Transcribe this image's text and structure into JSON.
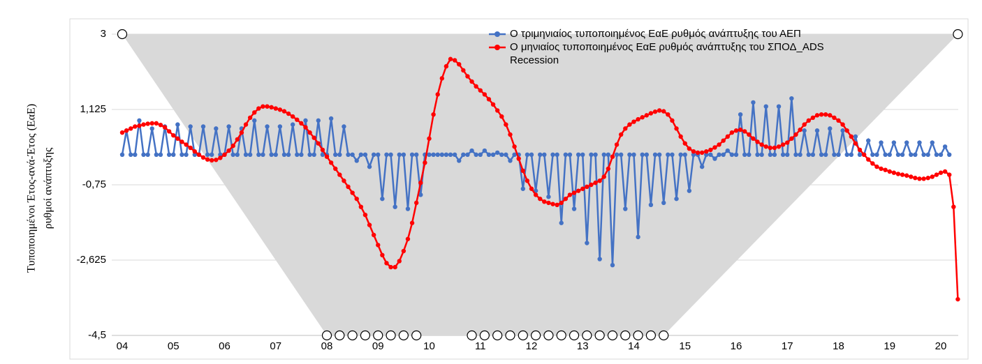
{
  "chart_data": {
    "type": "line",
    "y_label_lines": [
      "Τυποποιημένοι Έτος-ανά-Έτος (ΕαΕ)",
      "ρυθμοί ανάπτυξης"
    ],
    "categories": [
      "04",
      null,
      null,
      null,
      null,
      null,
      null,
      null,
      null,
      null,
      null,
      null,
      "05",
      null,
      null,
      null,
      null,
      null,
      null,
      null,
      null,
      null,
      null,
      null,
      "06",
      null,
      null,
      null,
      null,
      null,
      null,
      null,
      null,
      null,
      null,
      null,
      "07",
      null,
      null,
      null,
      null,
      null,
      null,
      null,
      null,
      null,
      null,
      null,
      "08",
      null,
      null,
      null,
      null,
      null,
      null,
      null,
      null,
      null,
      null,
      null,
      "09",
      null,
      null,
      null,
      null,
      null,
      null,
      null,
      null,
      null,
      null,
      null,
      "10",
      null,
      null,
      null,
      null,
      null,
      null,
      null,
      null,
      null,
      null,
      null,
      "11",
      null,
      null,
      null,
      null,
      null,
      null,
      null,
      null,
      null,
      null,
      null,
      "12",
      null,
      null,
      null,
      null,
      null,
      null,
      null,
      null,
      null,
      null,
      null,
      "13",
      null,
      null,
      null,
      null,
      null,
      null,
      null,
      null,
      null,
      null,
      null,
      "14",
      null,
      null,
      null,
      null,
      null,
      null,
      null,
      null,
      null,
      null,
      null,
      "15",
      null,
      null,
      null,
      null,
      null,
      null,
      null,
      null,
      null,
      null,
      null,
      "16",
      null,
      null,
      null,
      null,
      null,
      null,
      null,
      null,
      null,
      null,
      null,
      "17",
      null,
      null,
      null,
      null,
      null,
      null,
      null,
      null,
      null,
      null,
      null,
      "18",
      null,
      null,
      null,
      null,
      null,
      null,
      null,
      null,
      null,
      null,
      null,
      "19",
      null,
      null,
      null,
      null,
      null,
      null,
      null,
      null,
      null,
      null,
      null,
      "20",
      null,
      null,
      null,
      null
    ],
    "series": [
      {
        "name": "Ο τριμηνιαίος τυποποιημένος ΕαΕ ρυθμός ανάπτυξης του ΑΕΠ",
        "color": "#4472c4",
        "values": [
          0,
          0.6,
          0,
          0,
          0.85,
          0,
          0,
          0.65,
          0,
          0,
          0.7,
          0,
          0,
          0.75,
          0,
          0,
          0.7,
          0,
          0,
          0.7,
          0,
          0,
          0.65,
          0,
          0,
          0.7,
          0,
          0,
          0.65,
          0,
          0,
          0.85,
          0,
          0,
          0.7,
          0,
          0,
          0.7,
          0,
          0,
          0.75,
          0,
          0,
          0.85,
          0,
          0,
          0.85,
          0,
          0,
          0.9,
          0,
          0,
          0.7,
          0,
          0,
          -0.15,
          0,
          0,
          -0.3,
          0,
          0,
          -1.1,
          0,
          0,
          -1.3,
          0,
          0,
          -1.35,
          0,
          0,
          -1.0,
          0,
          0,
          0,
          0,
          0,
          0,
          0,
          0,
          -0.15,
          0,
          0,
          0.1,
          0,
          0,
          0.1,
          0,
          0,
          0.05,
          0,
          0,
          -0.15,
          0,
          0,
          -0.85,
          0,
          0,
          -0.9,
          0,
          0,
          -1.05,
          0,
          0,
          -1.7,
          0,
          0,
          -1.35,
          0,
          0,
          -2.2,
          0,
          0,
          -2.6,
          0,
          0,
          -2.75,
          0,
          0,
          -1.35,
          0,
          0,
          -2.05,
          0,
          0,
          -1.25,
          0,
          0,
          -1.2,
          0,
          0,
          -1.1,
          0,
          0,
          -0.9,
          0,
          0,
          -0.3,
          0,
          0,
          -0.1,
          0,
          0,
          0.1,
          0,
          0,
          1.0,
          0,
          0,
          1.3,
          0,
          0,
          1.2,
          0,
          0,
          1.2,
          0,
          0,
          1.4,
          0,
          0,
          0.6,
          0,
          0,
          0.6,
          0,
          0,
          0.65,
          0,
          0,
          0.6,
          0,
          0,
          0.45,
          0,
          0,
          0.35,
          0,
          0,
          0.3,
          0,
          0,
          0.3,
          0,
          0,
          0.3,
          0,
          0,
          0.3,
          0,
          0,
          0.3,
          0,
          0,
          0.2,
          0,
          null,
          null
        ]
      },
      {
        "name": "Ο μηνιαίος τυποποιημένος ΕαΕ ρυθμός ανάπτυξης του ΣΠΟΔ_ADS",
        "color": "#ff0000",
        "values": [
          0.55,
          0.6,
          0.65,
          0.7,
          0.72,
          0.75,
          0.77,
          0.78,
          0.78,
          0.74,
          0.68,
          0.58,
          0.48,
          0.4,
          0.32,
          0.25,
          0.17,
          0.08,
          0.0,
          -0.07,
          -0.12,
          -0.14,
          -0.13,
          -0.08,
          0.0,
          0.1,
          0.22,
          0.38,
          0.55,
          0.75,
          0.92,
          1.05,
          1.15,
          1.2,
          1.2,
          1.18,
          1.15,
          1.12,
          1.08,
          1.02,
          0.95,
          0.87,
          0.78,
          0.68,
          0.55,
          0.42,
          0.28,
          0.12,
          -0.05,
          -0.2,
          -0.35,
          -0.5,
          -0.65,
          -0.8,
          -0.95,
          -1.1,
          -1.3,
          -1.5,
          -1.75,
          -2.0,
          -2.25,
          -2.5,
          -2.7,
          -2.8,
          -2.8,
          -2.65,
          -2.4,
          -2.1,
          -1.7,
          -1.2,
          -0.7,
          -0.2,
          0.4,
          1.0,
          1.5,
          1.9,
          2.2,
          2.38,
          2.35,
          2.25,
          2.1,
          1.95,
          1.82,
          1.7,
          1.6,
          1.5,
          1.38,
          1.25,
          1.1,
          0.95,
          0.75,
          0.5,
          0.2,
          -0.1,
          -0.4,
          -0.65,
          -0.85,
          -1.0,
          -1.1,
          -1.17,
          -1.2,
          -1.23,
          -1.25,
          -1.2,
          -1.1,
          -1.0,
          -0.95,
          -0.9,
          -0.85,
          -0.8,
          -0.75,
          -0.7,
          -0.65,
          -0.55,
          -0.35,
          -0.05,
          0.25,
          0.5,
          0.65,
          0.75,
          0.82,
          0.88,
          0.93,
          0.98,
          1.03,
          1.07,
          1.1,
          1.08,
          1.0,
          0.85,
          0.65,
          0.45,
          0.28,
          0.15,
          0.08,
          0.05,
          0.05,
          0.08,
          0.12,
          0.18,
          0.25,
          0.35,
          0.45,
          0.55,
          0.6,
          0.62,
          0.58,
          0.5,
          0.4,
          0.32,
          0.25,
          0.2,
          0.17,
          0.17,
          0.2,
          0.25,
          0.3,
          0.4,
          0.5,
          0.62,
          0.75,
          0.85,
          0.92,
          0.98,
          1.0,
          1.0,
          0.98,
          0.92,
          0.85,
          0.75,
          0.6,
          0.45,
          0.28,
          0.12,
          0.0,
          -0.12,
          -0.22,
          -0.3,
          -0.35,
          -0.38,
          -0.42,
          -0.45,
          -0.48,
          -0.5,
          -0.52,
          -0.55,
          -0.58,
          -0.6,
          -0.6,
          -0.58,
          -0.55,
          -0.5,
          -0.45,
          -0.42,
          -0.5,
          -1.3,
          -3.6
        ]
      },
      {
        "name": "Recession",
        "color": "#d9d9d9",
        "values": [
          3,
          null,
          null,
          null,
          null,
          null,
          null,
          null,
          null,
          null,
          null,
          null,
          null,
          null,
          null,
          null,
          null,
          null,
          null,
          null,
          null,
          null,
          null,
          null,
          null,
          null,
          null,
          null,
          null,
          null,
          null,
          null,
          null,
          null,
          null,
          null,
          null,
          null,
          null,
          null,
          null,
          null,
          null,
          null,
          null,
          null,
          null,
          null,
          -4.5,
          null,
          null,
          -4.5,
          null,
          null,
          -4.5,
          null,
          null,
          -4.5,
          null,
          null,
          -4.5,
          null,
          null,
          -4.5,
          null,
          null,
          -4.5,
          null,
          null,
          -4.5,
          null,
          null,
          null,
          null,
          null,
          null,
          null,
          null,
          null,
          null,
          null,
          null,
          -4.5,
          null,
          null,
          -4.5,
          null,
          null,
          -4.5,
          null,
          null,
          -4.5,
          null,
          null,
          -4.5,
          null,
          null,
          -4.5,
          null,
          null,
          -4.5,
          null,
          null,
          -4.5,
          null,
          null,
          -4.5,
          null,
          null,
          -4.5,
          null,
          null,
          -4.5,
          null,
          null,
          -4.5,
          null,
          null,
          -4.5,
          null,
          null,
          -4.5,
          null,
          null,
          -4.5,
          null,
          null,
          -4.5,
          null,
          null,
          null,
          null,
          null,
          null,
          null,
          null,
          null,
          null,
          null,
          null,
          null,
          null,
          null,
          null,
          null,
          null,
          null,
          null,
          null,
          null,
          null,
          null,
          null,
          null,
          null,
          null,
          null,
          null,
          null,
          null,
          null,
          null,
          null,
          null,
          null,
          null,
          null,
          null,
          null,
          null,
          null,
          null,
          null,
          null,
          null,
          null,
          null,
          null,
          null,
          null,
          null,
          null,
          null,
          null,
          null,
          null,
          null,
          null,
          null,
          null,
          null,
          null,
          null,
          null,
          null,
          null,
          3
        ]
      }
    ],
    "ylim": [
      -4.5,
      3
    ],
    "yticks": [
      3,
      {
        "value": 1.125,
        "label": "1,125"
      },
      {
        "value": -0.75,
        "label": "-0,75"
      },
      {
        "value": -2.625,
        "label": "-2,625"
      },
      {
        "value": -4.5,
        "label": "-4,5"
      }
    ],
    "grid": true,
    "legend": "top-right"
  }
}
